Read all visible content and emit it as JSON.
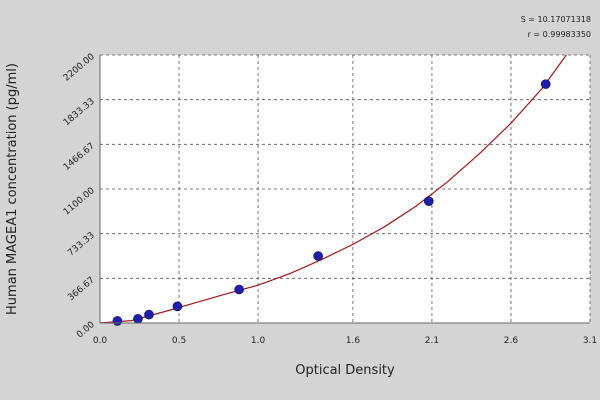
{
  "chart_data": {
    "type": "scatter",
    "title": "",
    "xlabel": "Optical Density",
    "ylabel": "Human MAGEA1 concentration (pg/ml)",
    "xlim": [
      0.0,
      3.1
    ],
    "ylim": [
      0,
      2200
    ],
    "x_ticks": [
      0.0,
      0.5,
      1.0,
      1.6,
      2.1,
      2.6,
      3.1
    ],
    "x_tick_labels": [
      "0.0",
      "0.5",
      "1.0",
      "1.6",
      "2.1",
      "2.6",
      "3.1"
    ],
    "y_ticks": [
      0,
      366.67,
      733.33,
      1100,
      1466.67,
      1833.33,
      2200
    ],
    "y_tick_labels": [
      "0.00",
      "366.67",
      "733.33",
      "1100.00",
      "1466.67",
      "1833.33",
      "2200.00"
    ],
    "grid": true,
    "points": {
      "x": [
        0.11,
        0.24,
        0.31,
        0.49,
        0.88,
        1.38,
        2.08,
        2.82
      ],
      "y": [
        17,
        34,
        69,
        137,
        275,
        550,
        1000,
        1961
      ]
    },
    "fit_curve": {
      "x": [
        0.0,
        0.2,
        0.4,
        0.6,
        0.8,
        1.0,
        1.2,
        1.4,
        1.6,
        1.8,
        2.0,
        2.2,
        2.4,
        2.6,
        2.8,
        2.95
      ],
      "y": [
        0,
        20,
        90,
        165,
        240,
        310,
        405,
        520,
        645,
        790,
        960,
        1160,
        1390,
        1640,
        1930,
        2200
      ]
    },
    "stats": [
      "S = 10.17071318",
      "r = 0.99983350"
    ],
    "colors": {
      "points": "#1f1fa8",
      "curve": "#a01818",
      "grid": "#555555",
      "background": "#ffffff",
      "page": "#d4d4d4"
    }
  }
}
